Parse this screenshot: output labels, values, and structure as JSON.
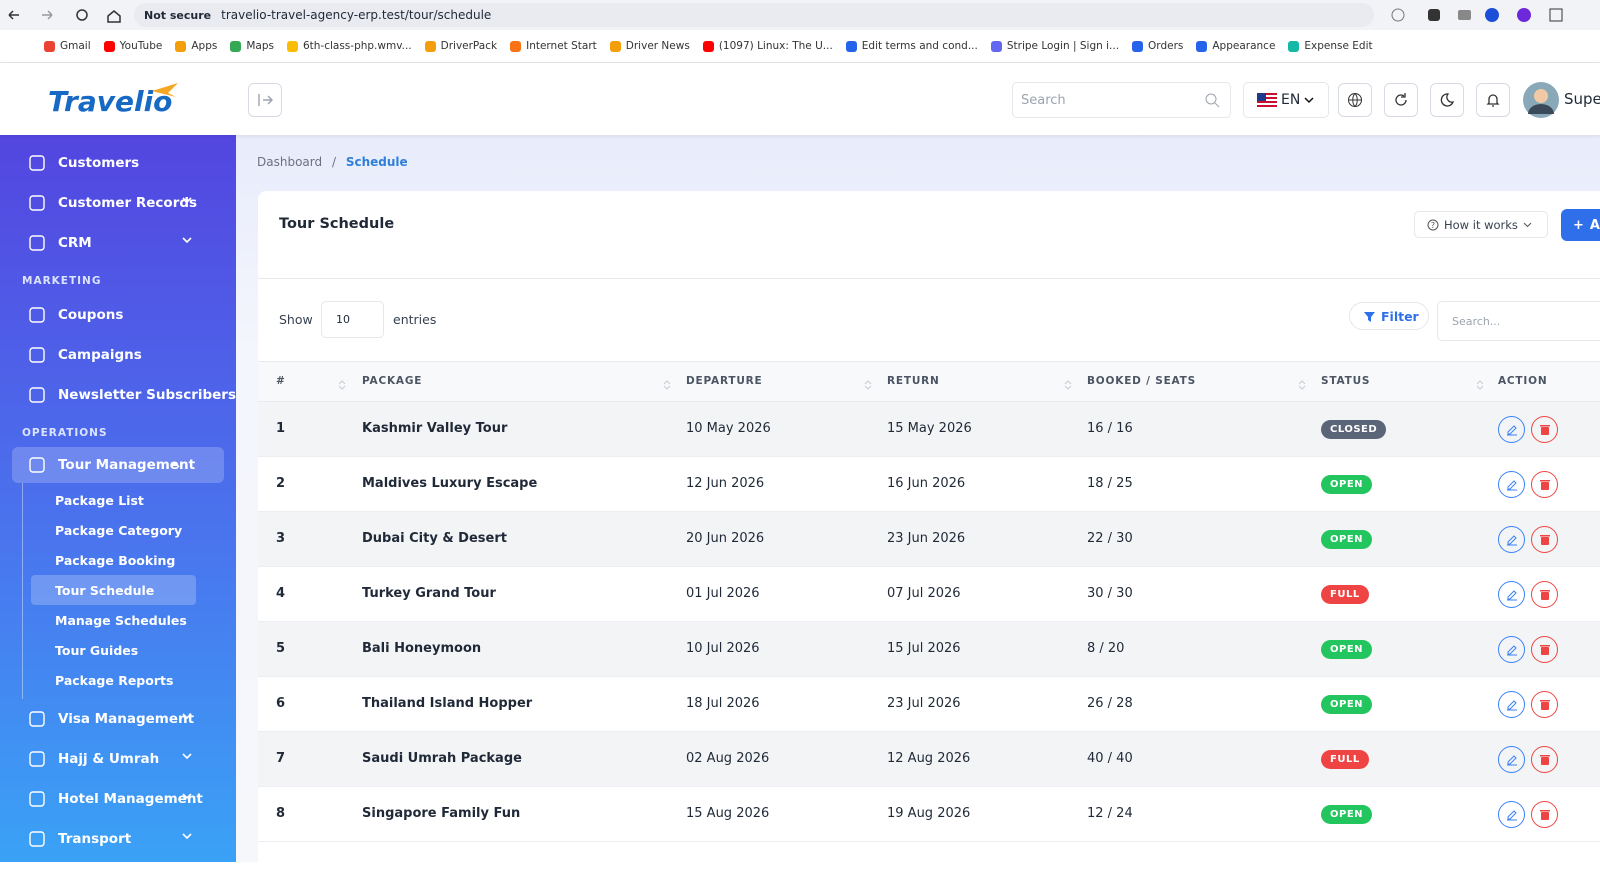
{
  "browser": {
    "not_secure": "Not secure",
    "url": "travelio-travel-agency-erp.test/tour/schedule",
    "bookmarks": [
      "Gmail",
      "YouTube",
      "Apps",
      "Maps",
      "6th-class-php.wmv...",
      "DriverPack",
      "Internet Start",
      "Driver News",
      "(1097) Linux: The U...",
      "Edit terms and cond...",
      "Stripe Login | Sign i...",
      "Orders",
      "Appearance",
      "Expense Edit"
    ]
  },
  "header": {
    "logo": "Travelio",
    "search": "Search",
    "language": "EN",
    "user": "Super"
  },
  "sidebar": {
    "groups": [
      {
        "items": [
          {
            "label": "Customers",
            "submenu": false
          },
          {
            "label": "Customer Records",
            "submenu": true
          },
          {
            "label": "CRM",
            "submenu": true
          }
        ]
      },
      {
        "heading": "MARKETING",
        "items": [
          {
            "label": "Coupons",
            "submenu": false
          },
          {
            "label": "Campaigns",
            "submenu": false
          },
          {
            "label": "Newsletter Subscribers",
            "submenu": false
          }
        ]
      },
      {
        "heading": "OPERATIONS",
        "items": [
          {
            "label": "Tour Management",
            "submenu": true,
            "open": true,
            "active_child": 3,
            "children": [
              "Package List",
              "Package Category",
              "Package Booking",
              "Tour Schedule",
              "Manage Schedules",
              "Tour Guides",
              "Package Reports"
            ]
          },
          {
            "label": "Visa Management",
            "submenu": true
          },
          {
            "label": "Hajj & Umrah",
            "submenu": true
          },
          {
            "label": "Hotel Management",
            "submenu": true
          },
          {
            "label": "Transport",
            "submenu": true
          }
        ]
      }
    ]
  },
  "breadcrumb": [
    "Dashboard",
    "Schedule"
  ],
  "card": {
    "title": "Tour Schedule",
    "how_it_works": "How it works",
    "add_button": "A",
    "show": "Show",
    "entries_value": "10",
    "entries": "entries",
    "filter": "Filter",
    "search": "Search..."
  },
  "table": {
    "columns": [
      "#",
      "PACKAGE",
      "DEPARTURE",
      "RETURN",
      "BOOKED / SEATS",
      "STATUS",
      "ACTION"
    ],
    "rows": [
      {
        "number": 1,
        "package": "Kashmir Valley Tour",
        "departure": "10 May 2026",
        "return": "15 May 2026",
        "booked": "16 / 16",
        "status": "CLOSED",
        "status_color": "#5b6578"
      },
      {
        "number": 2,
        "package": "Maldives Luxury Escape",
        "departure": "12 Jun 2026",
        "return": "16 Jun 2026",
        "booked": "18 / 25",
        "status": "OPEN",
        "status_color": "#22c55e"
      },
      {
        "number": 3,
        "package": "Dubai City & Desert",
        "departure": "20 Jun 2026",
        "return": "23 Jun 2026",
        "booked": "22 / 30",
        "status": "OPEN",
        "status_color": "#22c55e"
      },
      {
        "number": 4,
        "package": "Turkey Grand Tour",
        "departure": "01 Jul 2026",
        "return": "07 Jul 2026",
        "booked": "30 / 30",
        "status": "FULL",
        "status_color": "#ef4444"
      },
      {
        "number": 5,
        "package": "Bali Honeymoon",
        "departure": "10 Jul 2026",
        "return": "15 Jul 2026",
        "booked": "8 / 20",
        "status": "OPEN",
        "status_color": "#22c55e"
      },
      {
        "number": 6,
        "package": "Thailand Island Hopper",
        "departure": "18 Jul 2026",
        "return": "23 Jul 2026",
        "booked": "26 / 28",
        "status": "OPEN",
        "status_color": "#22c55e"
      },
      {
        "number": 7,
        "package": "Saudi Umrah Package",
        "departure": "02 Aug 2026",
        "return": "12 Aug 2026",
        "booked": "40 / 40",
        "status": "FULL",
        "status_color": "#ef4444"
      },
      {
        "number": 8,
        "package": "Singapore Family Fun",
        "departure": "15 Aug 2026",
        "return": "19 Aug 2026",
        "booked": "12 / 24",
        "status": "OPEN",
        "status_color": "#22c55e"
      }
    ]
  }
}
